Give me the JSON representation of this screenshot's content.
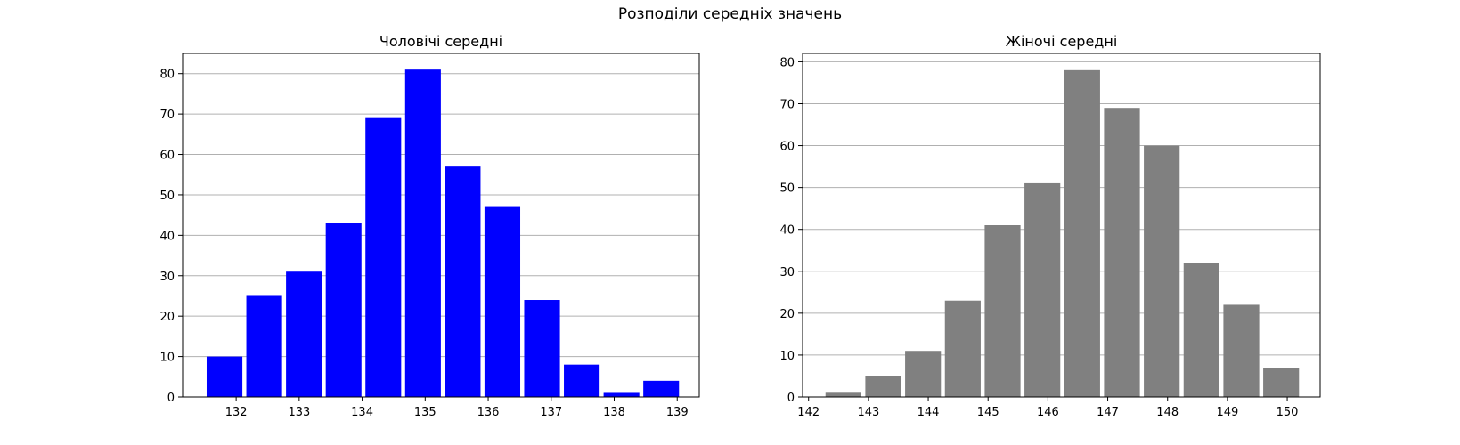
{
  "figure": {
    "suptitle": "Розподіли середніх значень"
  },
  "chart_data": [
    {
      "type": "bar",
      "title": "Чоловічі середні",
      "xlabel": "",
      "ylabel": "",
      "bar_color": "#0000ff",
      "grid": "y",
      "xlim": [
        131.15,
        139.35
      ],
      "ylim": [
        0,
        85
      ],
      "x_ticks": [
        132,
        133,
        134,
        135,
        136,
        137,
        138,
        139
      ],
      "y_ticks": [
        0,
        10,
        20,
        30,
        40,
        50,
        60,
        70,
        80
      ],
      "bins": [
        {
          "start": 131.5,
          "end": 132.13,
          "count": 10
        },
        {
          "start": 132.13,
          "end": 132.76,
          "count": 25
        },
        {
          "start": 132.76,
          "end": 133.39,
          "count": 31
        },
        {
          "start": 133.39,
          "end": 134.02,
          "count": 43
        },
        {
          "start": 134.02,
          "end": 134.65,
          "count": 69
        },
        {
          "start": 134.65,
          "end": 135.28,
          "count": 81
        },
        {
          "start": 135.28,
          "end": 135.91,
          "count": 57
        },
        {
          "start": 135.91,
          "end": 136.54,
          "count": 47
        },
        {
          "start": 136.54,
          "end": 137.17,
          "count": 24
        },
        {
          "start": 137.17,
          "end": 137.8,
          "count": 8
        },
        {
          "start": 137.8,
          "end": 138.43,
          "count": 1
        },
        {
          "start": 138.43,
          "end": 139.06,
          "count": 4
        }
      ]
    },
    {
      "type": "bar",
      "title": "Жіночі середні",
      "xlabel": "",
      "ylabel": "",
      "bar_color": "#808080",
      "grid": "y",
      "xlim": [
        141.9,
        150.55
      ],
      "ylim": [
        0,
        82
      ],
      "x_ticks": [
        142,
        143,
        144,
        145,
        146,
        147,
        148,
        149,
        150
      ],
      "y_ticks": [
        0,
        10,
        20,
        30,
        40,
        50,
        60,
        70,
        80
      ],
      "bins": [
        {
          "start": 142.25,
          "end": 142.915,
          "count": 1
        },
        {
          "start": 142.915,
          "end": 143.58,
          "count": 5
        },
        {
          "start": 143.58,
          "end": 144.245,
          "count": 11
        },
        {
          "start": 144.245,
          "end": 144.91,
          "count": 23
        },
        {
          "start": 144.91,
          "end": 145.575,
          "count": 41
        },
        {
          "start": 145.575,
          "end": 146.24,
          "count": 51
        },
        {
          "start": 146.24,
          "end": 146.905,
          "count": 78
        },
        {
          "start": 146.905,
          "end": 147.57,
          "count": 69
        },
        {
          "start": 147.57,
          "end": 148.235,
          "count": 60
        },
        {
          "start": 148.235,
          "end": 148.9,
          "count": 32
        },
        {
          "start": 148.9,
          "end": 149.565,
          "count": 22
        },
        {
          "start": 149.565,
          "end": 150.23,
          "count": 7
        }
      ]
    }
  ]
}
